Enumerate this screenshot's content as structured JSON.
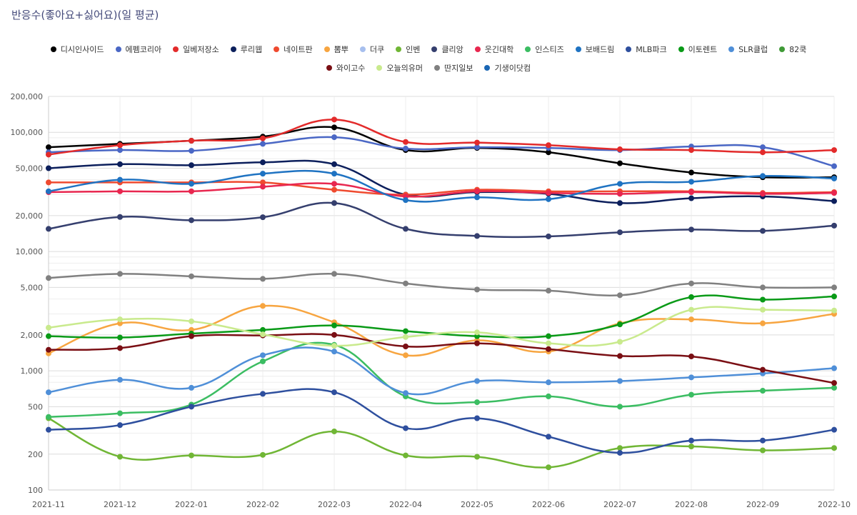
{
  "title": "반응수(좋아요+싫어요)(일 평균)",
  "chart_data": {
    "type": "line",
    "title": "반응수(좋아요+싫어요)(일 평균)",
    "y_scale": "log",
    "ylim": [
      100,
      200000
    ],
    "y_ticks": [
      {
        "value": 100,
        "label": "100"
      },
      {
        "value": 200,
        "label": "200"
      },
      {
        "value": 500,
        "label": "500"
      },
      {
        "value": 1000,
        "label": "1,000"
      },
      {
        "value": 2000,
        "label": "2,000"
      },
      {
        "value": 5000,
        "label": "5,000"
      },
      {
        "value": 10000,
        "label": "10,000"
      },
      {
        "value": 20000,
        "label": "20,000"
      },
      {
        "value": 50000,
        "label": "50,000"
      },
      {
        "value": 100000,
        "label": "100,000"
      },
      {
        "value": 200000,
        "label": "200,000"
      }
    ],
    "categories": [
      "2021-11",
      "2021-12",
      "2022-01",
      "2022-02",
      "2022-03",
      "2022-04",
      "2022-05",
      "2022-06",
      "2022-07",
      "2022-08",
      "2022-09",
      "2022-10"
    ],
    "series": [
      {
        "name": "디시인사이드",
        "color": "#000000",
        "values": [
          75000,
          80000,
          85000,
          92000,
          110000,
          71000,
          74000,
          68000,
          55000,
          46000,
          42000,
          42000
        ]
      },
      {
        "name": "에펨코리아",
        "color": "#4a67c5",
        "values": [
          68000,
          71000,
          70000,
          80000,
          91000,
          73000,
          75000,
          74000,
          71000,
          76000,
          75000,
          52000
        ]
      },
      {
        "name": "일베저장소",
        "color": "#e32b2b",
        "values": [
          65000,
          78000,
          85000,
          89000,
          128000,
          83000,
          82000,
          78000,
          72000,
          71000,
          68000,
          71000
        ]
      },
      {
        "name": "루리웹",
        "color": "#0c1f5c",
        "values": [
          50000,
          54000,
          53000,
          56000,
          54000,
          30000,
          31500,
          30500,
          25500,
          28000,
          29000,
          26500
        ]
      },
      {
        "name": "네이트판",
        "color": "#ef4a2f",
        "values": [
          38000,
          38000,
          38000,
          38000,
          33000,
          30000,
          33000,
          32000,
          32000,
          32000,
          31000,
          31500
        ]
      },
      {
        "name": "뽐뿌",
        "color": "#f7a540",
        "values": [
          1400,
          2500,
          2200,
          3500,
          2550,
          1350,
          1800,
          1450,
          2500,
          2700,
          2500,
          3000
        ]
      },
      {
        "name": "더쿠",
        "color": "#a7bfee",
        "values": [
          null,
          null,
          null,
          null,
          null,
          null,
          null,
          null,
          null,
          null,
          null,
          null
        ]
      },
      {
        "name": "인벤",
        "color": "#70b635",
        "values": [
          400,
          190,
          195,
          197,
          310,
          195,
          190,
          155,
          225,
          232,
          215,
          225
        ]
      },
      {
        "name": "클리앙",
        "color": "#353f6e",
        "values": [
          15500,
          19500,
          18300,
          19400,
          25500,
          15500,
          13500,
          13400,
          14500,
          15300,
          14900,
          16500
        ]
      },
      {
        "name": "웃긴대학",
        "color": "#e8274f",
        "values": [
          31500,
          32000,
          32000,
          35000,
          37000,
          29000,
          32000,
          31000,
          30500,
          31500,
          30500,
          31000
        ]
      },
      {
        "name": "인스티즈",
        "color": "#3bbd62",
        "values": [
          410,
          440,
          520,
          1200,
          1650,
          610,
          545,
          610,
          500,
          630,
          680,
          720
        ]
      },
      {
        "name": "보배드림",
        "color": "#1f73c2",
        "values": [
          32000,
          40000,
          37000,
          45000,
          45000,
          27000,
          28500,
          27500,
          37000,
          38500,
          43000,
          41000
        ]
      },
      {
        "name": "MLB파크",
        "color": "#2e4f9e",
        "values": [
          320,
          350,
          500,
          640,
          660,
          330,
          400,
          280,
          205,
          260,
          260,
          320
        ]
      },
      {
        "name": "이토렌트",
        "color": "#099a17",
        "values": [
          1950,
          1900,
          2050,
          2200,
          2400,
          2150,
          1950,
          1950,
          2450,
          4150,
          3950,
          4200
        ]
      },
      {
        "name": "SLR클럽",
        "color": "#4f8fd8",
        "values": [
          660,
          840,
          720,
          1350,
          1450,
          650,
          820,
          800,
          820,
          880,
          950,
          1050
        ]
      },
      {
        "name": "82쿡",
        "color": "#3f9a36",
        "values": [
          null,
          null,
          null,
          null,
          null,
          null,
          null,
          null,
          null,
          null,
          null,
          null
        ]
      },
      {
        "name": "와이고수",
        "color": "#7a0f14",
        "values": [
          1500,
          1550,
          1950,
          1980,
          2000,
          1600,
          1700,
          1520,
          1330,
          1320,
          1020,
          790
        ]
      },
      {
        "name": "오늘의유머",
        "color": "#c9ea8d",
        "values": [
          2300,
          2700,
          2600,
          2020,
          1620,
          1920,
          2100,
          1700,
          1750,
          3250,
          3250,
          3200
        ]
      },
      {
        "name": "딴지일보",
        "color": "#808080",
        "values": [
          6000,
          6500,
          6200,
          5900,
          6500,
          5400,
          4800,
          4700,
          4300,
          5400,
          5000,
          5000
        ]
      },
      {
        "name": "기생이닷컴",
        "color": "#1a66b4",
        "values": [
          null,
          null,
          null,
          null,
          null,
          null,
          null,
          null,
          null,
          null,
          null,
          null
        ]
      }
    ]
  }
}
